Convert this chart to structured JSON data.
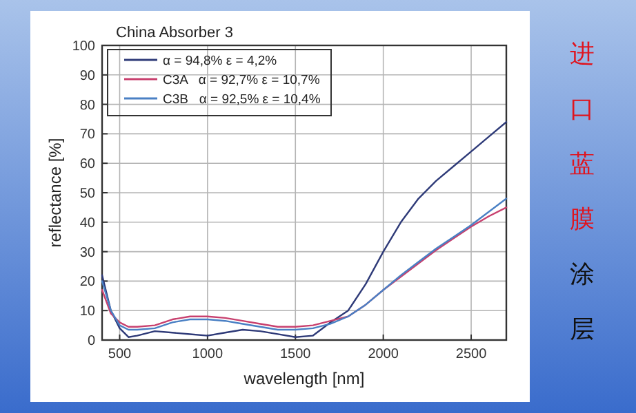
{
  "chart_data": {
    "type": "line",
    "title": "China Absorber 3",
    "xlabel": "wavelength [nm]",
    "ylabel": "reflectance [%]",
    "x": [
      400,
      450,
      500,
      550,
      600,
      700,
      800,
      900,
      1000,
      1100,
      1200,
      1300,
      1400,
      1500,
      1600,
      1700,
      1800,
      1900,
      2000,
      2100,
      2200,
      2300,
      2400,
      2500,
      2600,
      2700
    ],
    "series": [
      {
        "name": "α = 94,8% ε = 4,2%",
        "color": "#2e3a78",
        "values": [
          22,
          10,
          4,
          1,
          1.5,
          3,
          2.5,
          2,
          1.5,
          2.5,
          3.5,
          3,
          2,
          1,
          1.5,
          6,
          10,
          19,
          30,
          40,
          48,
          54,
          59,
          64,
          69,
          74
        ]
      },
      {
        "name": "C3A   α = 92,7% ε = 10,7%",
        "color": "#c8406e",
        "values": [
          17,
          9,
          6,
          4.5,
          4.5,
          5,
          7,
          8,
          8,
          7.5,
          6.5,
          5.5,
          4.5,
          4.5,
          5,
          6.5,
          8,
          12,
          17,
          21.5,
          26,
          30.5,
          34.5,
          38.5,
          42,
          45
        ]
      },
      {
        "name": "C3B   α = 92,5% ε = 10,4%",
        "color": "#4a80c4",
        "values": [
          20,
          10,
          5,
          3.5,
          3.5,
          4,
          6,
          7,
          7,
          6.5,
          5.5,
          4.5,
          3.5,
          3.5,
          4,
          5.5,
          8,
          12,
          17,
          22,
          26.5,
          31,
          35,
          39,
          43.5,
          48
        ]
      }
    ],
    "xlim": [
      400,
      2700
    ],
    "ylim": [
      0,
      100
    ],
    "xticks": [
      500,
      1000,
      1500,
      2000,
      2500
    ],
    "yticks": [
      0,
      10,
      20,
      30,
      40,
      50,
      60,
      70,
      80,
      90,
      100
    ],
    "grid": true,
    "legend": "top left",
    "annotations": [
      "进口蓝膜",
      "涂层"
    ]
  }
}
